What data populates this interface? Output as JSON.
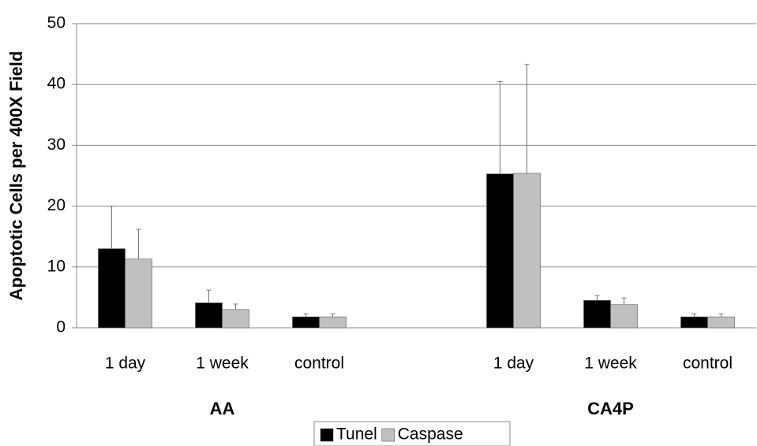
{
  "chart_data": {
    "type": "bar",
    "y_label": "Apoptotic Cells per 400X Field",
    "categories": [
      "1 day",
      "1 week",
      "control",
      null,
      "1 day",
      "1 week",
      "control"
    ],
    "groups": [
      "AA",
      "CA4P"
    ],
    "series": [
      {
        "name": "Tunel",
        "color": "#000000",
        "values": [
          13,
          4.1,
          1.8,
          null,
          25.3,
          4.5,
          1.8
        ],
        "errors": [
          7,
          2.1,
          0.5,
          null,
          15.2,
          0.8,
          0.5
        ]
      },
      {
        "name": "Caspase",
        "color": "#c0c0c0",
        "values": [
          11.3,
          3.0,
          1.8,
          null,
          25.4,
          3.8,
          1.8
        ],
        "errors": [
          4.9,
          0.9,
          0.5,
          null,
          17.9,
          1.1,
          0.5
        ]
      }
    ],
    "ylim": [
      0,
      50
    ],
    "yticks": [
      0,
      10,
      20,
      30,
      40,
      50
    ],
    "grid": true,
    "legend": "bottom"
  }
}
